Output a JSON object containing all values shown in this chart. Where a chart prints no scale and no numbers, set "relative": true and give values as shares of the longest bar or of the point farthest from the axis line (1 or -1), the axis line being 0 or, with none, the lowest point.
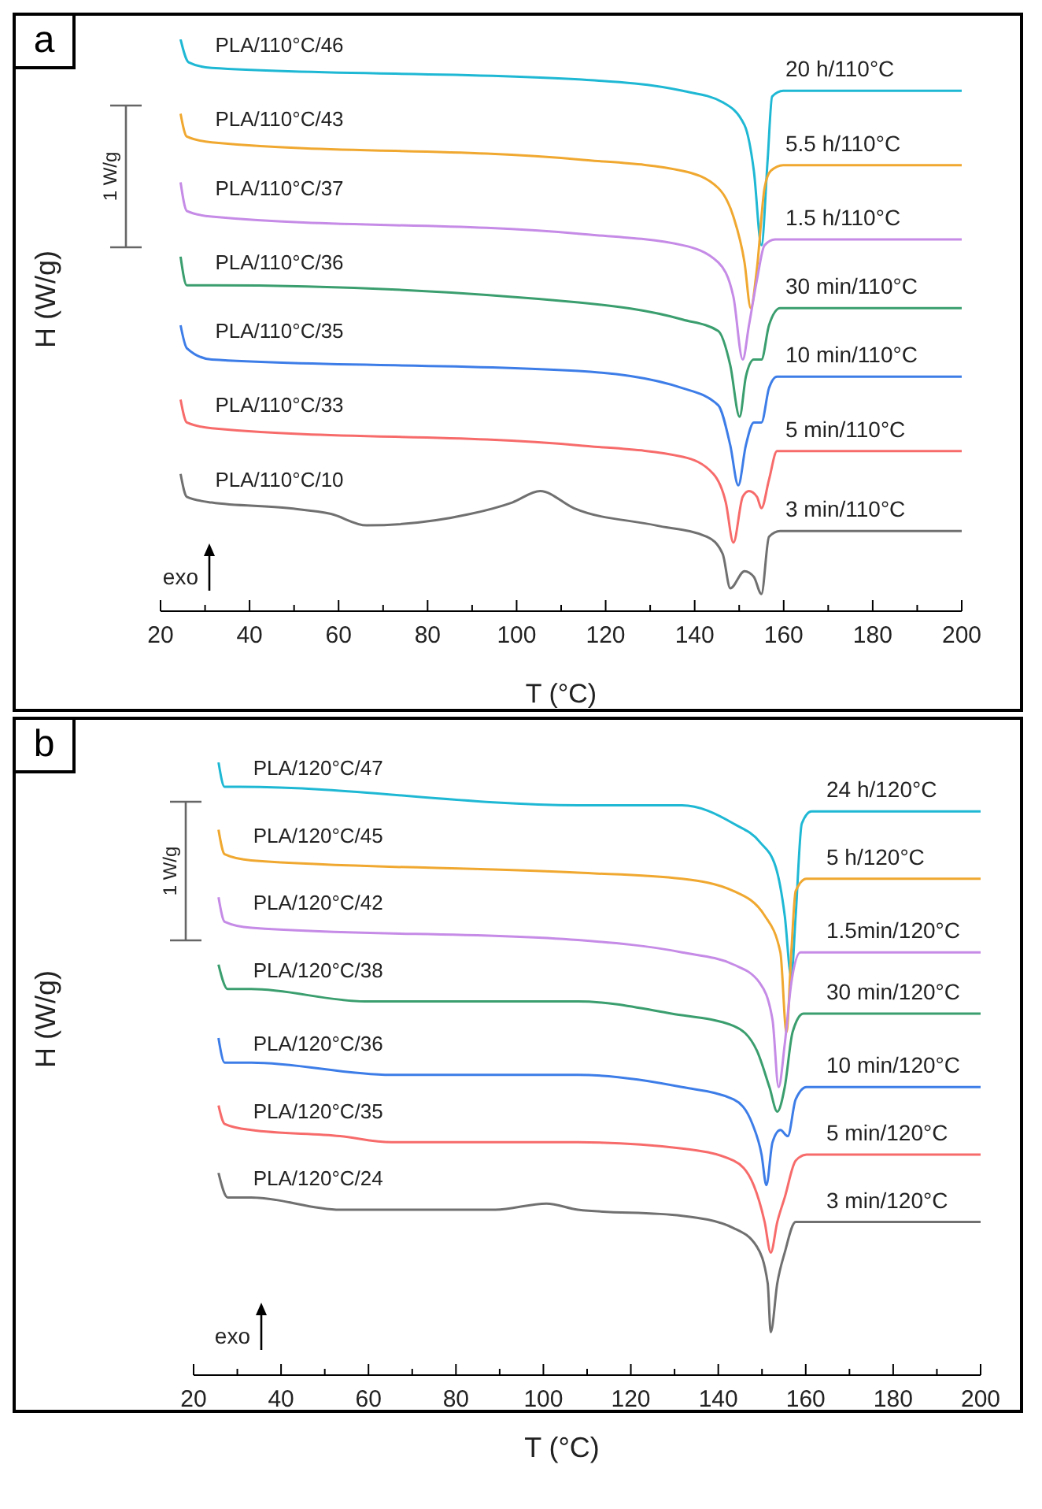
{
  "chart_data": [
    {
      "type": "line",
      "title": "a",
      "xlabel": "T (°C)",
      "ylabel": "H (W/g)",
      "relative": true,
      "xlim": [
        20,
        200
      ],
      "xticks": [
        20,
        {
          "value": 30,
          "label": null
        },
        40,
        {
          "value": 50,
          "label": null
        },
        60,
        {
          "value": 70,
          "label": null
        },
        80,
        {
          "value": 90,
          "label": null
        },
        100,
        {
          "value": 110,
          "label": null
        },
        120,
        {
          "value": 130,
          "label": null
        },
        140,
        {
          "value": 150,
          "label": null
        },
        160,
        {
          "value": 170,
          "label": null
        },
        180,
        {
          "value": 190,
          "label": null
        },
        200
      ],
      "annotations": [
        "1 W/g",
        "exo",
        "20 h/110°C",
        "5.5 h/110°C",
        "1.5 h/110°C",
        "30 min/110°C",
        "10 min/110°C",
        "5 min/110°C",
        "3 min/110°C"
      ],
      "series": [
        {
          "name": "PLA/110°C/46",
          "color": "#1fb8d4",
          "x": [
            24.5,
            26.3,
            31.5,
            113.9,
            137.3,
            146.3,
            151.2,
            153.3,
            155.0,
            156.4,
            157.4,
            159.9,
            200
          ],
          "values": [
            1.0,
            0.96,
            0.95,
            0.93,
            0.91,
            0.89,
            0.85,
            0.77,
            0.64,
            0.79,
            0.9,
            0.91,
            0.91
          ]
        },
        {
          "name": "PLA/110°C/43",
          "color": "#f0a830",
          "x": [
            24.5,
            25.9,
            31.5,
            113.9,
            137.3,
            145.3,
            148.7,
            151.2,
            152.6,
            154.0,
            155.7,
            157.1,
            159.9,
            200
          ],
          "values": [
            0.87,
            0.83,
            0.82,
            0.79,
            0.77,
            0.74,
            0.69,
            0.61,
            0.53,
            0.6,
            0.74,
            0.77,
            0.78,
            0.78
          ]
        },
        {
          "name": "PLA/110°C/37",
          "color": "#c58be6",
          "x": [
            24.5,
            25.9,
            31.5,
            113.9,
            137.3,
            145.3,
            148.7,
            150.8,
            152.2,
            154.0,
            155.7,
            158.1,
            200
          ],
          "values": [
            0.75,
            0.7,
            0.69,
            0.66,
            0.64,
            0.61,
            0.55,
            0.44,
            0.5,
            0.58,
            0.64,
            0.65,
            0.65
          ]
        },
        {
          "name": "PLA/110°C/36",
          "color": "#3a9e6e",
          "x": [
            24.5,
            25.9,
            31.5,
            113.9,
            137.3,
            145.3,
            148.0,
            150.1,
            151.5,
            153.3,
            155.0,
            156.7,
            159.2,
            200
          ],
          "values": [
            0.62,
            0.57,
            0.57,
            0.54,
            0.51,
            0.49,
            0.43,
            0.34,
            0.41,
            0.44,
            0.44,
            0.5,
            0.53,
            0.53
          ]
        },
        {
          "name": "PLA/110°C/35",
          "color": "#3d7de8",
          "x": [
            24.5,
            25.9,
            31.5,
            113.9,
            137.3,
            145.3,
            148.0,
            149.8,
            151.5,
            153.3,
            155.0,
            156.7,
            158.5,
            200
          ],
          "values": [
            0.5,
            0.46,
            0.44,
            0.42,
            0.39,
            0.36,
            0.29,
            0.22,
            0.29,
            0.33,
            0.33,
            0.39,
            0.41,
            0.41
          ]
        },
        {
          "name": "PLA/110°C/33",
          "color": "#f76b6b",
          "x": [
            24.5,
            25.9,
            31.5,
            113.9,
            137.3,
            144.2,
            147.0,
            148.7,
            150.8,
            152.2,
            154.0,
            155.0,
            156.7,
            158.5,
            200
          ],
          "values": [
            0.37,
            0.33,
            0.32,
            0.29,
            0.27,
            0.24,
            0.19,
            0.12,
            0.2,
            0.21,
            0.2,
            0.18,
            0.23,
            0.28,
            0.28
          ]
        },
        {
          "name": "PLA/110°C/10",
          "color": "#707070",
          "x": [
            24.5,
            25.9,
            31.5,
            48.9,
            58.3,
            66.3,
            89.6,
            99.0,
            105.3,
            112.9,
            131.3,
            142.8,
            146.3,
            148.0,
            151.2,
            153.3,
            155.0,
            156.7,
            159.2,
            200
          ],
          "values": [
            0.24,
            0.2,
            0.19,
            0.18,
            0.17,
            0.15,
            0.17,
            0.19,
            0.21,
            0.18,
            0.15,
            0.13,
            0.1,
            0.04,
            0.07,
            0.06,
            0.03,
            0.13,
            0.14,
            0.14
          ]
        }
      ]
    },
    {
      "type": "line",
      "title": "b",
      "xlabel": "T (°C)",
      "ylabel": "H (W/g)",
      "relative": true,
      "xlim": [
        20,
        200
      ],
      "xticks": [
        20,
        {
          "value": 30,
          "label": null
        },
        40,
        {
          "value": 50,
          "label": null
        },
        60,
        {
          "value": 70,
          "label": null
        },
        80,
        {
          "value": 90,
          "label": null
        },
        100,
        {
          "value": 110,
          "label": null
        },
        120,
        {
          "value": 130,
          "label": null
        },
        140,
        {
          "value": 150,
          "label": null
        },
        160,
        {
          "value": 170,
          "label": null
        },
        180,
        {
          "value": 190,
          "label": null
        },
        200
      ],
      "annotations": [
        "1 W/g",
        "exo",
        "24 h/120°C",
        "5 h/120°C",
        "1.5min/120°C",
        "30 min/120°C",
        "10 min/120°C",
        "5 min/120°C",
        "3 min/120°C"
      ],
      "series": [
        {
          "name": "PLA/120°C/47",
          "color": "#1fb8d4",
          "x": [
            25.7,
            27.1,
            30.7,
            107.9,
            131.7,
            143.5,
            149.5,
            153.1,
            155.2,
            156.7,
            157.7,
            159.1,
            161.3,
            200
          ],
          "values": [
            1.0,
            0.96,
            0.96,
            0.93,
            0.93,
            0.9,
            0.87,
            0.83,
            0.75,
            0.65,
            0.75,
            0.9,
            0.92,
            0.92
          ]
        },
        {
          "name": "PLA/120°C/45",
          "color": "#f0a830",
          "x": [
            25.7,
            27.1,
            33.2,
            107.9,
            131.7,
            143.5,
            150.6,
            154.2,
            155.6,
            156.7,
            157.7,
            160.2,
            200
          ],
          "values": [
            0.89,
            0.85,
            0.84,
            0.82,
            0.81,
            0.79,
            0.75,
            0.69,
            0.56,
            0.69,
            0.79,
            0.81,
            0.81
          ]
        },
        {
          "name": "PLA/120°C/42",
          "color": "#c58be6",
          "x": [
            25.7,
            27.1,
            33.2,
            107.9,
            131.7,
            143.5,
            149.5,
            152.4,
            153.8,
            155.2,
            156.7,
            158.8,
            161.3,
            200
          ],
          "values": [
            0.78,
            0.74,
            0.73,
            0.71,
            0.69,
            0.67,
            0.64,
            0.58,
            0.47,
            0.54,
            0.64,
            0.69,
            0.69,
            0.69
          ]
        },
        {
          "name": "PLA/120°C/38",
          "color": "#3a9e6e",
          "x": [
            25.7,
            27.8,
            33.2,
            59.2,
            83.0,
            107.9,
            129.3,
            143.5,
            148.8,
            151.7,
            153.5,
            155.2,
            157.0,
            159.5,
            200
          ],
          "values": [
            0.67,
            0.63,
            0.63,
            0.61,
            0.61,
            0.61,
            0.59,
            0.57,
            0.53,
            0.47,
            0.43,
            0.47,
            0.56,
            0.59,
            0.59
          ]
        },
        {
          "name": "PLA/120°C/36",
          "color": "#3d7de8",
          "x": [
            25.7,
            27.1,
            33.2,
            65.2,
            107.9,
            131.7,
            143.5,
            147.8,
            149.9,
            151.0,
            152.4,
            154.2,
            155.9,
            157.7,
            160.2,
            200
          ],
          "values": [
            0.55,
            0.51,
            0.51,
            0.49,
            0.49,
            0.47,
            0.45,
            0.41,
            0.36,
            0.31,
            0.38,
            0.4,
            0.39,
            0.45,
            0.47,
            0.47
          ]
        },
        {
          "name": "PLA/120°C/35",
          "color": "#f76b6b",
          "x": [
            25.7,
            27.1,
            33.2,
            53.5,
            65.2,
            107.9,
            131.7,
            143.5,
            148.1,
            150.6,
            152.0,
            153.5,
            155.2,
            157.7,
            160.2,
            200
          ],
          "values": [
            0.44,
            0.41,
            0.4,
            0.39,
            0.38,
            0.38,
            0.37,
            0.35,
            0.31,
            0.25,
            0.2,
            0.25,
            0.29,
            0.35,
            0.36,
            0.36
          ]
        },
        {
          "name": "PLA/120°C/24",
          "color": "#707070",
          "x": [
            25.7,
            27.8,
            33.2,
            53.5,
            65.2,
            89.0,
            100.7,
            107.9,
            131.7,
            143.5,
            148.8,
            151.3,
            152.0,
            153.5,
            155.2,
            157.7,
            160.2,
            200
          ],
          "values": [
            0.33,
            0.29,
            0.29,
            0.27,
            0.27,
            0.27,
            0.28,
            0.27,
            0.26,
            0.24,
            0.21,
            0.15,
            0.07,
            0.15,
            0.2,
            0.25,
            0.25,
            0.25
          ]
        }
      ]
    }
  ]
}
